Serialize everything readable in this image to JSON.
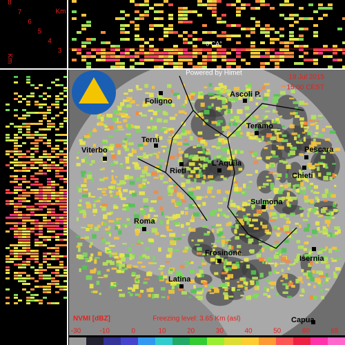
{
  "panel": {
    "unit_top": "Km",
    "unit_side": "Km",
    "altitudes": [
      "8",
      "7",
      "6",
      "5",
      "4",
      "3"
    ],
    "zero_label": "0 CA°"
  },
  "header": {
    "credit": "Powered by Himet",
    "date": "19 Jul 2015",
    "time": "15:00 CEST"
  },
  "cities": [
    "Foligno",
    "Ascoli P.",
    "Teramo",
    "Terni",
    "Pescara",
    "Viterbo",
    "L'Aquila",
    "Rieti",
    "Chieti",
    "Sulmona",
    "Roma",
    "Frosinone",
    "Isernia",
    "Latina",
    "Capua"
  ],
  "footer": {
    "product": "NVMI [dBZ]",
    "freezing": "Freezing level: 3.65 Km (asl)"
  },
  "legend": {
    "ticks": [
      -30,
      -10,
      0,
      10,
      20,
      30,
      40,
      50,
      60,
      65
    ]
  }
}
